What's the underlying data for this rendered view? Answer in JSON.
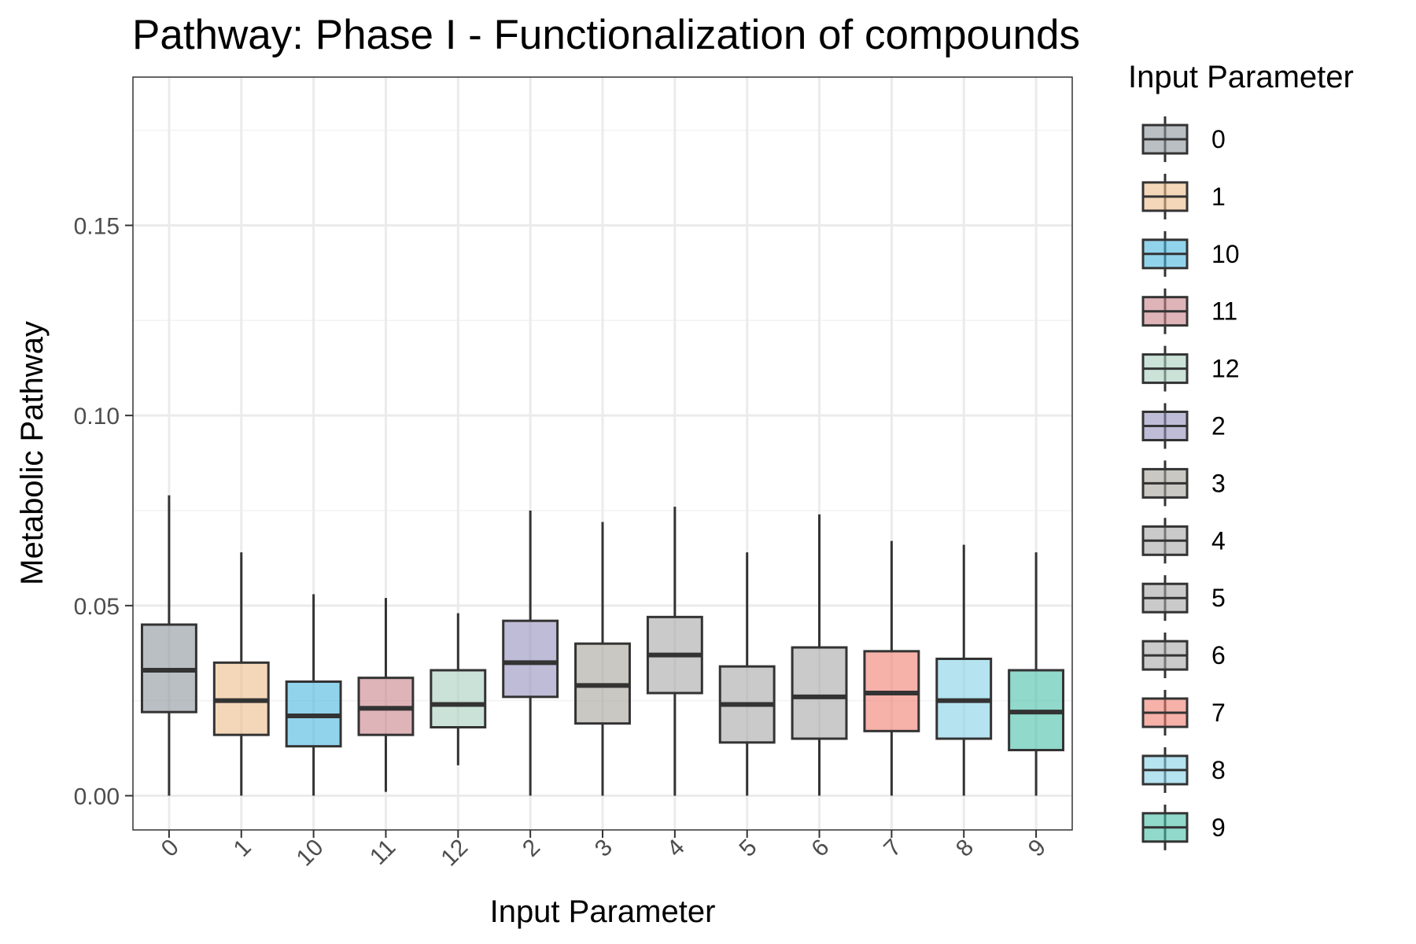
{
  "chart_data": {
    "type": "boxplot",
    "title": "Pathway: Phase I - Functionalization of compounds",
    "xlabel": "Input Parameter",
    "ylabel": "Metabolic Pathway",
    "ylim": [
      -0.009,
      0.189
    ],
    "yticks": [
      "0.00",
      "0.05",
      "0.10",
      "0.15"
    ],
    "ytick_values": [
      0,
      0.05,
      0.1,
      0.15
    ],
    "grid": true,
    "legend": {
      "title": "Input Parameter",
      "position": "right"
    },
    "categories": [
      "0",
      "1",
      "10",
      "11",
      "12",
      "2",
      "3",
      "4",
      "5",
      "6",
      "7",
      "8",
      "9"
    ],
    "boxes": [
      {
        "label": "0",
        "color": "#8c959c",
        "min": 0.0,
        "q1": 0.022,
        "median": 0.033,
        "q3": 0.045,
        "max": 0.079
      },
      {
        "label": "1",
        "color": "#edbb8a",
        "min": 0.0,
        "q1": 0.016,
        "median": 0.025,
        "q3": 0.035,
        "max": 0.064
      },
      {
        "label": "10",
        "color": "#4ab6e0",
        "min": 0.0,
        "q1": 0.013,
        "median": 0.021,
        "q3": 0.03,
        "max": 0.053
      },
      {
        "label": "11",
        "color": "#c9828a",
        "min": 0.001,
        "q1": 0.016,
        "median": 0.023,
        "q3": 0.031,
        "max": 0.052
      },
      {
        "label": "12",
        "color": "#a8cfbf",
        "min": 0.008,
        "q1": 0.018,
        "median": 0.024,
        "q3": 0.033,
        "max": 0.048
      },
      {
        "label": "2",
        "color": "#9490bd",
        "min": 0.0,
        "q1": 0.026,
        "median": 0.035,
        "q3": 0.046,
        "max": 0.075
      },
      {
        "label": "3",
        "color": "#a6a39a",
        "min": 0.0,
        "q1": 0.019,
        "median": 0.029,
        "q3": 0.04,
        "max": 0.072
      },
      {
        "label": "4",
        "color": "#a6a6a6",
        "min": 0.0,
        "q1": 0.027,
        "median": 0.037,
        "q3": 0.047,
        "max": 0.076
      },
      {
        "label": "5",
        "color": "#a6a6a6",
        "min": 0.0,
        "q1": 0.014,
        "median": 0.024,
        "q3": 0.034,
        "max": 0.064
      },
      {
        "label": "6",
        "color": "#a6a6a6",
        "min": 0.0,
        "q1": 0.015,
        "median": 0.026,
        "q3": 0.039,
        "max": 0.074
      },
      {
        "label": "7",
        "color": "#f07d70",
        "min": 0.0,
        "q1": 0.017,
        "median": 0.027,
        "q3": 0.038,
        "max": 0.067
      },
      {
        "label": "8",
        "color": "#84d1e6",
        "min": 0.0,
        "q1": 0.015,
        "median": 0.025,
        "q3": 0.036,
        "max": 0.066
      },
      {
        "label": "9",
        "color": "#46bfa8",
        "min": 0.0,
        "q1": 0.012,
        "median": 0.022,
        "q3": 0.033,
        "max": 0.064
      }
    ]
  }
}
